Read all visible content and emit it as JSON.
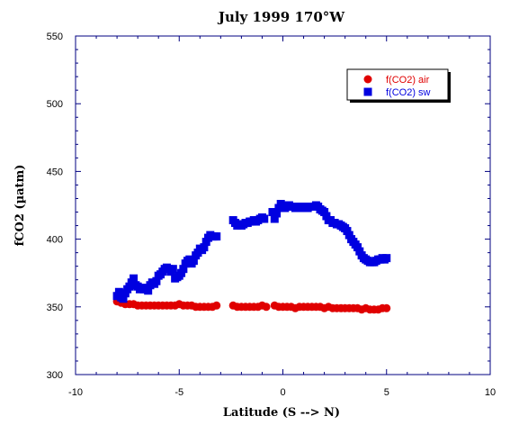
{
  "chart_data": {
    "type": "scatter",
    "title": "July 1999 170°W",
    "xlabel": "Latitude (S --> N)",
    "ylabel": "fCO2 (µatm)",
    "xlim": [
      -10,
      10
    ],
    "ylim": [
      300,
      550
    ],
    "xticks": [
      -10,
      -5,
      0,
      5,
      10
    ],
    "yticks": [
      300,
      350,
      400,
      450,
      500,
      550
    ],
    "grid": false,
    "legend_position": "top-right",
    "series": [
      {
        "name": "f(CO2) air",
        "marker": "circle",
        "color": "#e00000",
        "points": [
          [
            -8.0,
            354
          ],
          [
            -7.8,
            353
          ],
          [
            -7.6,
            352
          ],
          [
            -7.4,
            352
          ],
          [
            -7.2,
            352
          ],
          [
            -7.0,
            351
          ],
          [
            -6.8,
            351
          ],
          [
            -6.6,
            351
          ],
          [
            -6.4,
            351
          ],
          [
            -6.2,
            351
          ],
          [
            -6.0,
            351
          ],
          [
            -5.8,
            351
          ],
          [
            -5.6,
            351
          ],
          [
            -5.4,
            351
          ],
          [
            -5.2,
            351
          ],
          [
            -5.0,
            352
          ],
          [
            -4.8,
            351
          ],
          [
            -4.6,
            351
          ],
          [
            -4.4,
            351
          ],
          [
            -4.2,
            350
          ],
          [
            -4.0,
            350
          ],
          [
            -3.8,
            350
          ],
          [
            -3.6,
            350
          ],
          [
            -3.4,
            350
          ],
          [
            -3.2,
            351
          ],
          [
            -2.4,
            351
          ],
          [
            -2.2,
            350
          ],
          [
            -2.0,
            350
          ],
          [
            -1.8,
            350
          ],
          [
            -1.6,
            350
          ],
          [
            -1.4,
            350
          ],
          [
            -1.2,
            350
          ],
          [
            -1.0,
            351
          ],
          [
            -0.8,
            350
          ],
          [
            -0.4,
            351
          ],
          [
            -0.2,
            350
          ],
          [
            0.0,
            350
          ],
          [
            0.2,
            350
          ],
          [
            0.4,
            350
          ],
          [
            0.6,
            349
          ],
          [
            0.8,
            350
          ],
          [
            1.0,
            350
          ],
          [
            1.2,
            350
          ],
          [
            1.4,
            350
          ],
          [
            1.6,
            350
          ],
          [
            1.8,
            350
          ],
          [
            2.0,
            349
          ],
          [
            2.2,
            350
          ],
          [
            2.4,
            349
          ],
          [
            2.6,
            349
          ],
          [
            2.8,
            349
          ],
          [
            3.0,
            349
          ],
          [
            3.2,
            349
          ],
          [
            3.4,
            349
          ],
          [
            3.6,
            349
          ],
          [
            3.8,
            348
          ],
          [
            4.0,
            349
          ],
          [
            4.2,
            348
          ],
          [
            4.4,
            348
          ],
          [
            4.6,
            348
          ],
          [
            4.8,
            349
          ],
          [
            5.0,
            349
          ]
        ]
      },
      {
        "name": "f(CO2) sw",
        "marker": "square",
        "color": "#0000e0",
        "points": [
          [
            -8.0,
            358
          ],
          [
            -7.9,
            361
          ],
          [
            -7.8,
            357
          ],
          [
            -7.7,
            356
          ],
          [
            -7.6,
            360
          ],
          [
            -7.5,
            363
          ],
          [
            -7.4,
            365
          ],
          [
            -7.3,
            368
          ],
          [
            -7.2,
            371
          ],
          [
            -7.1,
            366
          ],
          [
            -7.0,
            365
          ],
          [
            -6.9,
            363
          ],
          [
            -6.8,
            364
          ],
          [
            -6.7,
            363
          ],
          [
            -6.6,
            364
          ],
          [
            -6.5,
            362
          ],
          [
            -6.4,
            366
          ],
          [
            -6.3,
            368
          ],
          [
            -6.2,
            367
          ],
          [
            -6.1,
            369
          ],
          [
            -6.0,
            373
          ],
          [
            -5.9,
            374
          ],
          [
            -5.8,
            376
          ],
          [
            -5.7,
            378
          ],
          [
            -5.6,
            379
          ],
          [
            -5.5,
            378
          ],
          [
            -5.4,
            376
          ],
          [
            -5.3,
            378
          ],
          [
            -5.2,
            371
          ],
          [
            -5.1,
            372
          ],
          [
            -5.0,
            373
          ],
          [
            -4.9,
            375
          ],
          [
            -4.8,
            378
          ],
          [
            -4.7,
            382
          ],
          [
            -4.6,
            384
          ],
          [
            -4.5,
            385
          ],
          [
            -4.4,
            382
          ],
          [
            -4.3,
            384
          ],
          [
            -4.2,
            388
          ],
          [
            -4.1,
            390
          ],
          [
            -4.0,
            393
          ],
          [
            -3.9,
            392
          ],
          [
            -3.8,
            394
          ],
          [
            -3.7,
            398
          ],
          [
            -3.6,
            401
          ],
          [
            -3.5,
            403
          ],
          [
            -3.4,
            402
          ],
          [
            -3.3,
            402
          ],
          [
            -3.2,
            402
          ],
          [
            -2.4,
            414
          ],
          [
            -2.3,
            412
          ],
          [
            -2.2,
            410
          ],
          [
            -2.1,
            411
          ],
          [
            -2.0,
            410
          ],
          [
            -1.9,
            411
          ],
          [
            -1.8,
            412
          ],
          [
            -1.7,
            412
          ],
          [
            -1.6,
            413
          ],
          [
            -1.5,
            413
          ],
          [
            -1.4,
            414
          ],
          [
            -1.3,
            413
          ],
          [
            -1.2,
            414
          ],
          [
            -1.1,
            415
          ],
          [
            -1.0,
            416
          ],
          [
            -0.9,
            415
          ],
          [
            -0.5,
            420
          ],
          [
            -0.4,
            415
          ],
          [
            -0.3,
            419
          ],
          [
            -0.2,
            423
          ],
          [
            -0.1,
            426
          ],
          [
            0.0,
            425
          ],
          [
            0.1,
            423
          ],
          [
            0.2,
            424
          ],
          [
            0.3,
            425
          ],
          [
            0.4,
            424
          ],
          [
            0.5,
            424
          ],
          [
            0.6,
            423
          ],
          [
            0.7,
            423
          ],
          [
            0.8,
            424
          ],
          [
            0.9,
            423
          ],
          [
            1.0,
            424
          ],
          [
            1.1,
            423
          ],
          [
            1.2,
            423
          ],
          [
            1.3,
            424
          ],
          [
            1.4,
            424
          ],
          [
            1.5,
            424
          ],
          [
            1.6,
            425
          ],
          [
            1.7,
            424
          ],
          [
            1.8,
            422
          ],
          [
            1.9,
            421
          ],
          [
            2.0,
            420
          ],
          [
            2.1,
            417
          ],
          [
            2.2,
            414
          ],
          [
            2.3,
            414
          ],
          [
            2.4,
            412
          ],
          [
            2.5,
            412
          ],
          [
            2.6,
            411
          ],
          [
            2.7,
            411
          ],
          [
            2.8,
            410
          ],
          [
            2.9,
            409
          ],
          [
            3.0,
            408
          ],
          [
            3.1,
            406
          ],
          [
            3.2,
            403
          ],
          [
            3.3,
            400
          ],
          [
            3.4,
            398
          ],
          [
            3.5,
            396
          ],
          [
            3.6,
            394
          ],
          [
            3.7,
            391
          ],
          [
            3.8,
            388
          ],
          [
            3.9,
            386
          ],
          [
            4.0,
            385
          ],
          [
            4.1,
            384
          ],
          [
            4.2,
            383
          ],
          [
            4.3,
            383
          ],
          [
            4.4,
            383
          ],
          [
            4.5,
            384
          ],
          [
            4.6,
            385
          ],
          [
            4.7,
            385
          ],
          [
            4.8,
            386
          ],
          [
            4.9,
            385
          ],
          [
            5.0,
            386
          ]
        ]
      }
    ]
  }
}
